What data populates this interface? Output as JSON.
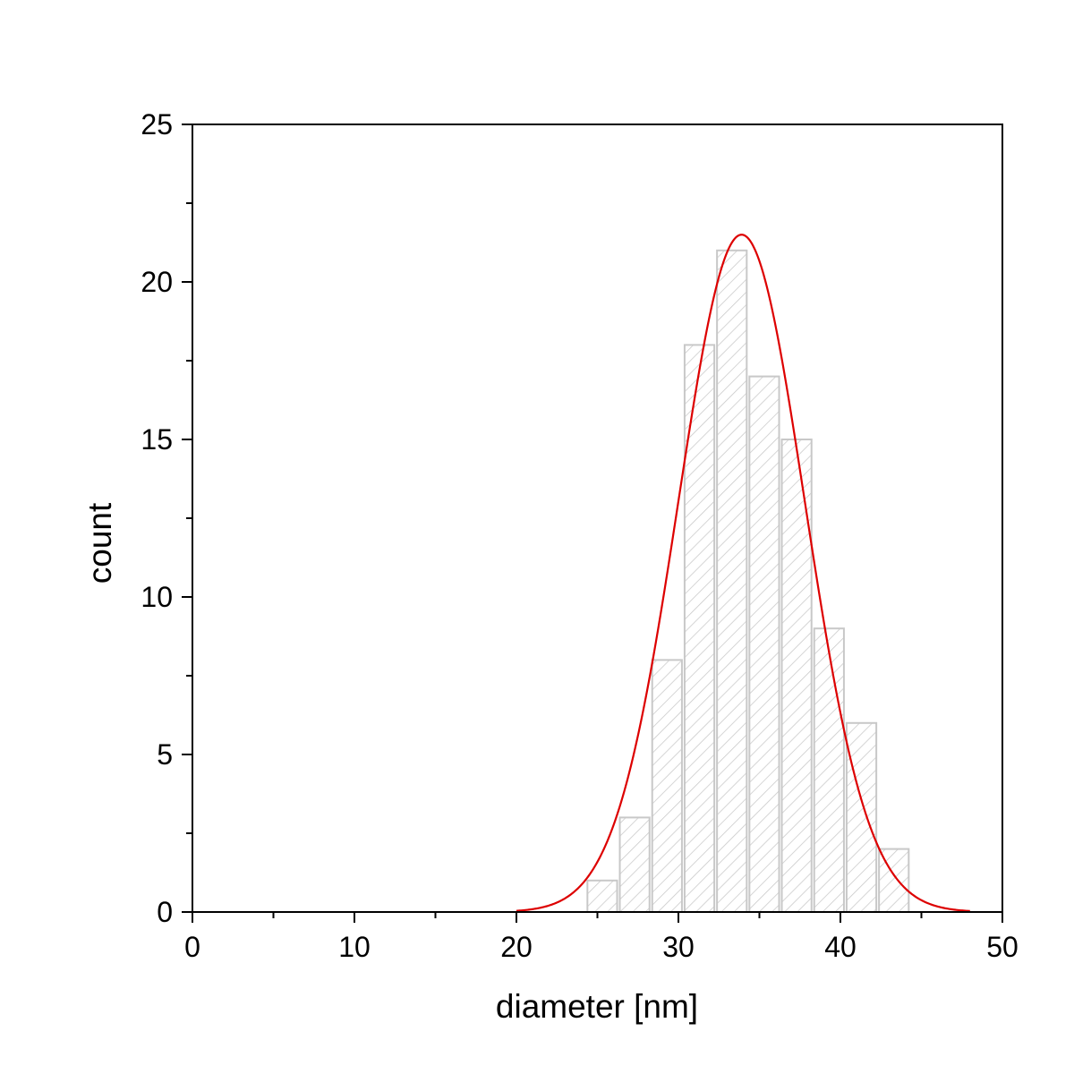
{
  "chart_data": {
    "type": "bar",
    "title": "",
    "xlabel": "diameter [nm]",
    "ylabel": "count",
    "xlim": [
      0,
      50
    ],
    "ylim": [
      0,
      25
    ],
    "x_ticks": [
      0,
      10,
      20,
      30,
      40,
      50
    ],
    "y_ticks": [
      0,
      5,
      10,
      15,
      20,
      25
    ],
    "x_minor_step": 5,
    "y_minor_step": 2.5,
    "grid": false,
    "bins": [
      {
        "start": 24.3,
        "end": 26.3,
        "count": 1
      },
      {
        "start": 26.3,
        "end": 28.3,
        "count": 3
      },
      {
        "start": 28.3,
        "end": 30.3,
        "count": 8
      },
      {
        "start": 30.3,
        "end": 32.3,
        "count": 18
      },
      {
        "start": 32.3,
        "end": 34.3,
        "count": 21
      },
      {
        "start": 34.3,
        "end": 36.3,
        "count": 17
      },
      {
        "start": 36.3,
        "end": 38.3,
        "count": 15
      },
      {
        "start": 38.3,
        "end": 40.3,
        "count": 9
      },
      {
        "start": 40.3,
        "end": 42.3,
        "count": 6
      },
      {
        "start": 42.3,
        "end": 44.3,
        "count": 2
      }
    ],
    "fit": {
      "type": "gaussian",
      "mean": 33.9,
      "sigma": 3.9,
      "amplitude": 21.5,
      "x_range": [
        20,
        48
      ]
    },
    "colors": {
      "bar_stroke": "#c8c8c8",
      "bar_hatch": "#c8c8c8",
      "fit_line": "#dd0000",
      "axis": "#000000"
    }
  }
}
